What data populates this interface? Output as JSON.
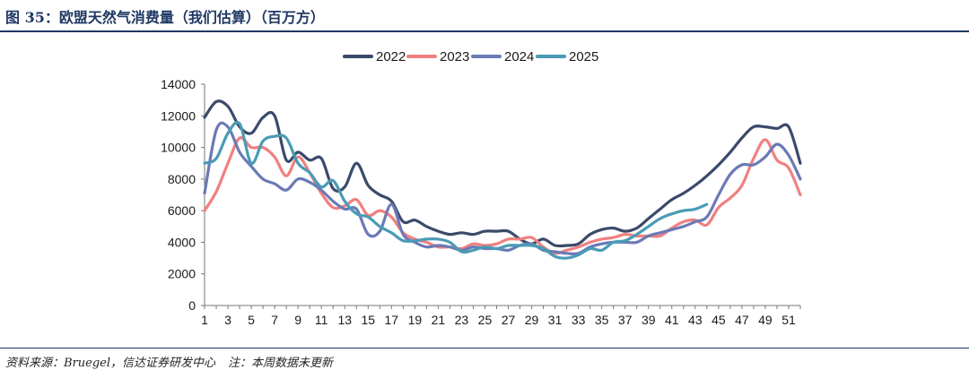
{
  "figure": {
    "title": "图 35：欧盟天然气消费量（我们估算）（百万方）",
    "source": "资料来源：Bruegel，信达证券研发中心",
    "note": "注：本周数据未更新"
  },
  "chart_data": {
    "type": "line",
    "title": "",
    "xlabel": "",
    "ylabel": "",
    "ylim": [
      0,
      14000
    ],
    "yticks": [
      0,
      2000,
      4000,
      6000,
      8000,
      10000,
      12000,
      14000
    ],
    "xlim": [
      1,
      52
    ],
    "xticks": [
      1,
      3,
      5,
      7,
      9,
      11,
      13,
      15,
      17,
      19,
      21,
      23,
      25,
      27,
      29,
      31,
      33,
      35,
      37,
      39,
      41,
      43,
      45,
      47,
      49,
      51
    ],
    "legend_position": "top",
    "grid": false,
    "series": [
      {
        "name": "2022",
        "color": "#3b4a6b",
        "x": [
          1,
          2,
          3,
          4,
          5,
          6,
          7,
          8,
          9,
          10,
          11,
          12,
          13,
          14,
          15,
          16,
          17,
          18,
          19,
          20,
          21,
          22,
          23,
          24,
          25,
          26,
          27,
          28,
          29,
          30,
          31,
          32,
          33,
          34,
          35,
          36,
          37,
          38,
          39,
          40,
          41,
          42,
          43,
          44,
          45,
          46,
          47,
          48,
          49,
          50,
          51,
          52
        ],
        "values": [
          11900,
          12900,
          12600,
          11300,
          10900,
          11900,
          12000,
          9200,
          9700,
          9200,
          9300,
          7400,
          7500,
          9000,
          7600,
          7000,
          6600,
          5300,
          5400,
          5000,
          4700,
          4500,
          4600,
          4500,
          4700,
          4700,
          4700,
          4200,
          3900,
          4200,
          3800,
          3800,
          3900,
          4500,
          4800,
          4900,
          4700,
          4900,
          5500,
          6100,
          6700,
          7100,
          7600,
          8200,
          8900,
          9700,
          10600,
          11300,
          11300,
          11200,
          11300,
          9000
        ]
      },
      {
        "name": "2023",
        "color": "#f08080",
        "x": [
          1,
          2,
          3,
          4,
          5,
          6,
          7,
          8,
          9,
          10,
          11,
          12,
          13,
          14,
          15,
          16,
          17,
          18,
          19,
          20,
          21,
          22,
          23,
          24,
          25,
          26,
          27,
          28,
          29,
          30,
          31,
          32,
          33,
          34,
          35,
          36,
          37,
          38,
          39,
          40,
          41,
          42,
          43,
          44,
          45,
          46,
          47,
          48,
          49,
          50,
          51,
          52
        ],
        "values": [
          6000,
          7200,
          9000,
          10600,
          10000,
          10000,
          9400,
          8200,
          9400,
          8400,
          7100,
          6200,
          6300,
          6700,
          5700,
          6000,
          5600,
          4600,
          4200,
          4000,
          3700,
          3700,
          3600,
          3900,
          3800,
          3900,
          4200,
          4200,
          4300,
          3700,
          3300,
          3500,
          3700,
          4000,
          4200,
          4300,
          4500,
          4400,
          4400,
          4400,
          4900,
          5300,
          5400,
          5100,
          6200,
          6800,
          7600,
          9300,
          10500,
          9200,
          8700,
          7000
        ]
      },
      {
        "name": "2024",
        "color": "#6a7ab5",
        "x": [
          1,
          2,
          3,
          4,
          5,
          6,
          7,
          8,
          9,
          10,
          11,
          12,
          13,
          14,
          15,
          16,
          17,
          18,
          19,
          20,
          21,
          22,
          23,
          24,
          25,
          26,
          27,
          28,
          29,
          30,
          31,
          32,
          33,
          34,
          35,
          36,
          37,
          38,
          39,
          40,
          41,
          42,
          43,
          44,
          45,
          46,
          47,
          48,
          49,
          50,
          51,
          52
        ],
        "values": [
          7100,
          11100,
          11300,
          9700,
          8800,
          8000,
          7700,
          7300,
          8000,
          7800,
          7300,
          6600,
          6100,
          6100,
          4500,
          4700,
          6400,
          4500,
          4000,
          3700,
          3800,
          3700,
          3500,
          3700,
          3600,
          3600,
          3500,
          3800,
          3900,
          3500,
          3400,
          3300,
          3300,
          3700,
          3900,
          4000,
          4000,
          4000,
          4400,
          4600,
          4800,
          5000,
          5300,
          5600,
          7000,
          8300,
          8900,
          8900,
          9400,
          10200,
          9500,
          8000
        ]
      },
      {
        "name": "2025",
        "color": "#4a9bb5",
        "x": [
          1,
          2,
          3,
          4,
          5,
          6,
          7,
          8,
          9,
          10,
          11,
          12,
          13,
          14,
          15,
          16,
          17,
          18,
          19,
          20,
          21,
          22,
          23,
          24,
          25,
          26,
          27,
          28,
          29,
          30,
          31,
          32,
          33,
          34,
          35,
          36,
          37,
          38,
          39,
          40,
          41,
          42,
          43,
          44
        ],
        "values": [
          9000,
          9300,
          10900,
          11500,
          9000,
          10400,
          10700,
          10600,
          9000,
          8400,
          7500,
          7900,
          6600,
          5800,
          5600,
          5000,
          4600,
          4100,
          4100,
          4200,
          4200,
          4000,
          3400,
          3500,
          3700,
          3600,
          3800,
          3800,
          3800,
          3600,
          3100,
          3000,
          3200,
          3600,
          3500,
          4000,
          4100,
          4500,
          5000,
          5500,
          5800,
          6000,
          6100,
          6400
        ]
      }
    ]
  }
}
